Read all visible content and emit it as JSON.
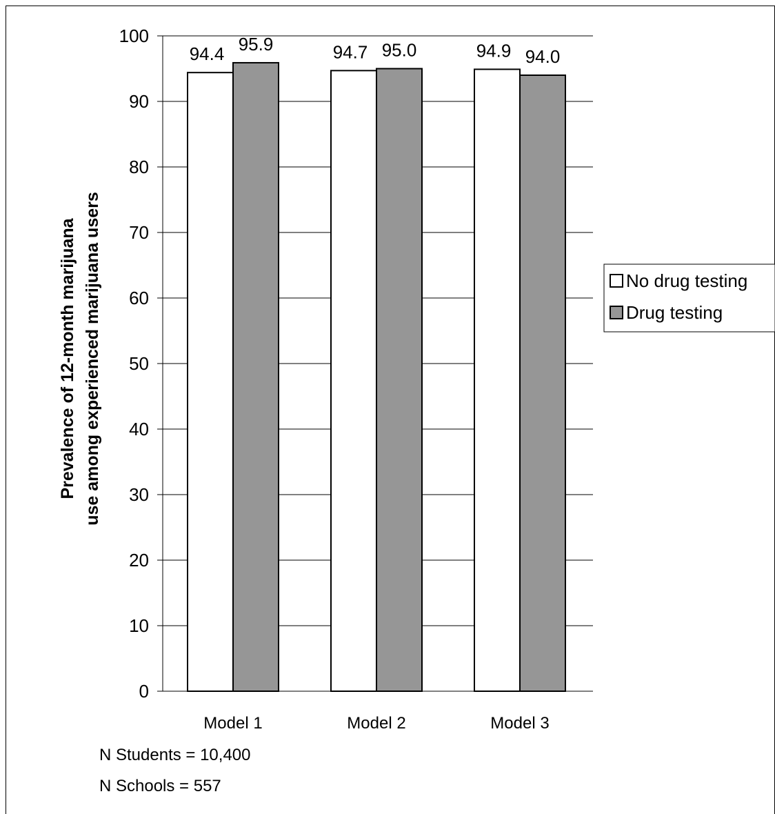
{
  "chart_data": {
    "type": "bar",
    "categories": [
      "Model 1",
      "Model 2",
      "Model 3"
    ],
    "series": [
      {
        "name": "No drug testing",
        "values": [
          94.4,
          94.7,
          94.9
        ],
        "labels": [
          "94.4",
          "94.7",
          "94.9"
        ],
        "color": "#ffffff"
      },
      {
        "name": "Drug testing",
        "values": [
          95.9,
          95.0,
          94.0
        ],
        "labels": [
          "95.9",
          "95.0",
          "94.0"
        ],
        "color": "#969696"
      }
    ],
    "title": "",
    "xlabel": "",
    "ylabel": [
      "Prevalence of 12-month marijuana",
      "use among experienced marijuana users"
    ],
    "ylim": [
      0,
      100
    ],
    "yticks": [
      0,
      10,
      20,
      30,
      40,
      50,
      60,
      70,
      80,
      90,
      100
    ],
    "grid": true,
    "legend": "right",
    "notes": [
      "N Students = 10,400",
      "N Schools = 557"
    ]
  }
}
